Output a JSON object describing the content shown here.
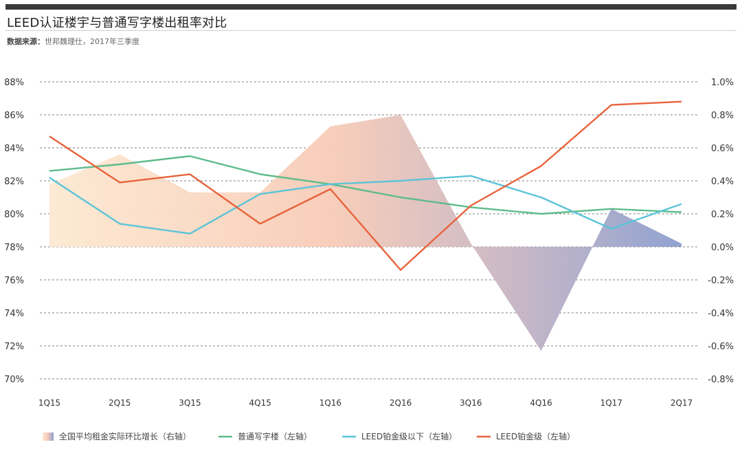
{
  "header": {
    "title": "LEED认证楼宇与普通写字楼出租率对比",
    "source_label": "数据来源：",
    "source_text": "世邦魏理仕，2017年三季度"
  },
  "chart_data": {
    "type": "line",
    "categories": [
      "1Q15",
      "2Q15",
      "3Q15",
      "4Q15",
      "1Q16",
      "2Q16",
      "3Q16",
      "4Q16",
      "1Q17",
      "2Q17"
    ],
    "y_left": {
      "ticks": [
        "88%",
        "86%",
        "84%",
        "82%",
        "80%",
        "78%",
        "76%",
        "74%",
        "72%",
        "70%"
      ],
      "range": [
        70,
        88
      ],
      "unit": "%"
    },
    "y_right": {
      "ticks": [
        "1.0%",
        "0.8%",
        "0.6%",
        "0.4%",
        "0.2%",
        "0.0%",
        "-0.2%",
        "-0.4%",
        "-0.6%",
        "-0.8%"
      ],
      "range": [
        -0.8,
        1.0
      ],
      "unit": "%"
    },
    "grid": "dashed horizontal",
    "legend_position": "bottom",
    "area_series": {
      "name": "全国平均租金实际环比增长（右轴）",
      "axis": "right",
      "values": [
        0.38,
        0.56,
        0.33,
        0.33,
        0.73,
        0.8,
        0.02,
        -0.63,
        0.23,
        0.02
      ],
      "gradient": [
        "#fde9d2",
        "#f7cbb7",
        "#c9b6c3",
        "#8b9ecf"
      ]
    },
    "series": [
      {
        "name": "普通写字楼（左轴）",
        "axis": "left",
        "color": "#5dbb8b",
        "values": [
          82.6,
          83.0,
          83.5,
          82.4,
          81.8,
          81.0,
          80.4,
          80.0,
          80.3,
          80.1
        ]
      },
      {
        "name": "LEED铂金级以下（左轴）",
        "axis": "left",
        "color": "#5bc4d8",
        "values": [
          82.2,
          79.4,
          78.8,
          81.2,
          81.8,
          82.0,
          82.3,
          81.0,
          79.1,
          80.6
        ]
      },
      {
        "name": "LEED铂金级（左轴）",
        "axis": "left",
        "color": "#e8623a",
        "values": [
          84.7,
          81.9,
          82.4,
          79.4,
          81.5,
          76.6,
          80.5,
          82.9,
          86.6,
          86.8
        ]
      }
    ]
  }
}
